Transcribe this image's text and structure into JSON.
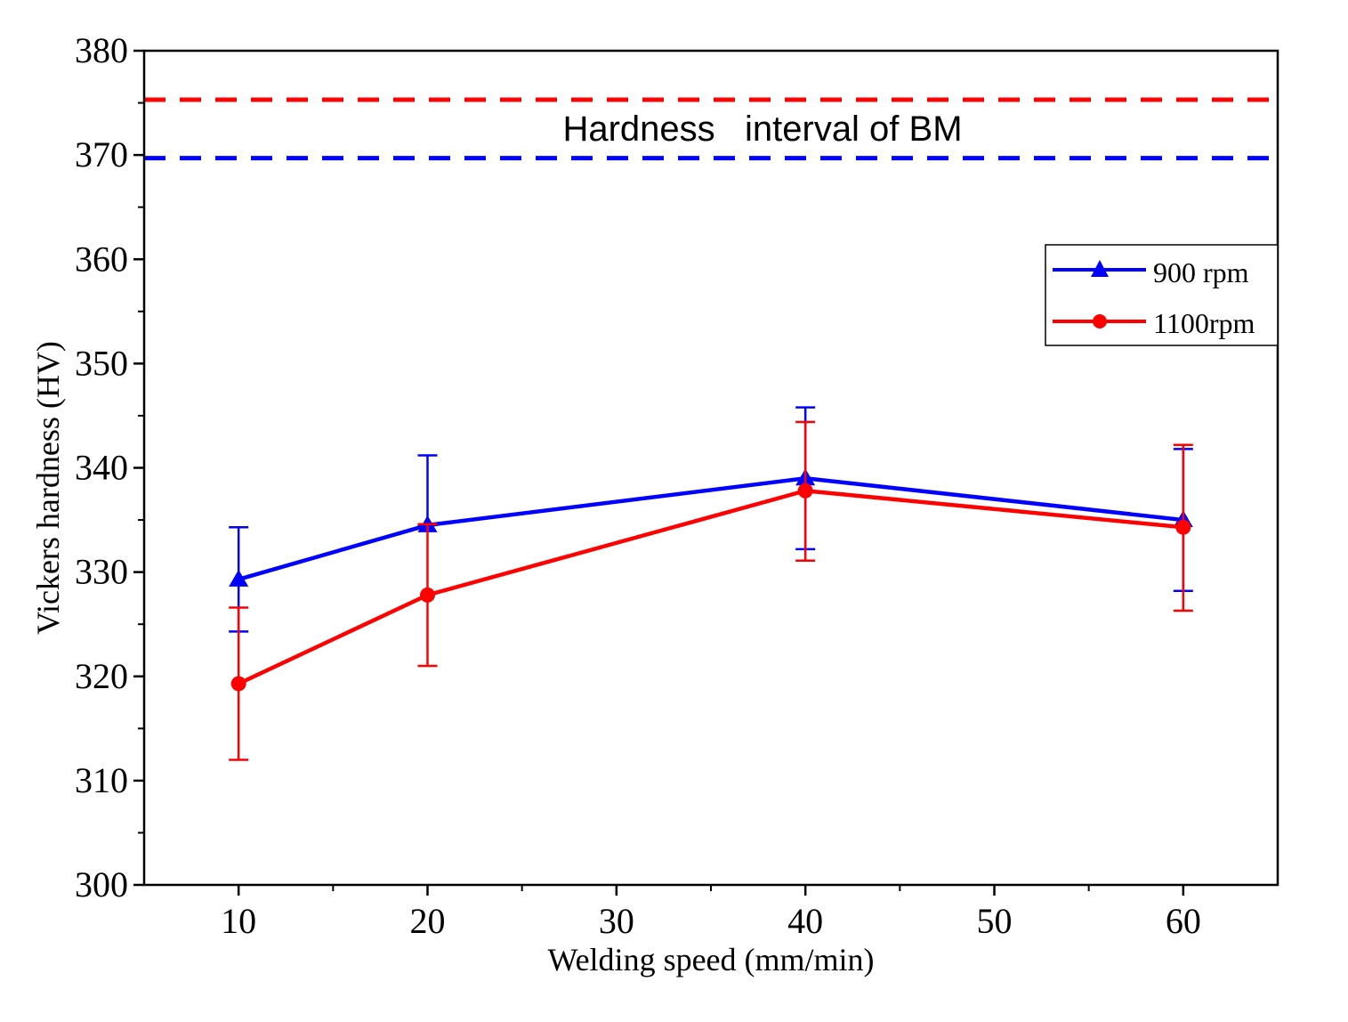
{
  "chart_data": {
    "type": "line",
    "xlabel": "Welding speed (mm/min)",
    "ylabel": "Vickers hardness (HV)",
    "xlim": [
      5,
      65
    ],
    "ylim": [
      300,
      380
    ],
    "x_ticks": [
      10,
      20,
      30,
      40,
      50,
      60
    ],
    "x_minor_ticks": [
      15,
      25,
      35,
      45,
      55
    ],
    "y_ticks": [
      300,
      310,
      320,
      330,
      340,
      350,
      360,
      370,
      380
    ],
    "y_minor_ticks": [
      305,
      315,
      325,
      335,
      345,
      355,
      365,
      375
    ],
    "series": [
      {
        "name": "900 rpm",
        "color": "#0000ff",
        "marker": "triangle",
        "x": [
          10,
          20,
          40,
          60
        ],
        "y": [
          329.3,
          334.5,
          339.0,
          335.0
        ],
        "err_low": [
          324.3,
          334.5,
          332.2,
          328.2
        ],
        "err_high": [
          334.3,
          341.2,
          345.8,
          341.8
        ]
      },
      {
        "name": "1100rpm",
        "color": "#ff0000",
        "marker": "circle",
        "x": [
          10,
          20,
          40,
          60
        ],
        "y": [
          319.3,
          327.8,
          337.8,
          334.3
        ],
        "err_low": [
          312.0,
          321.0,
          331.1,
          326.3
        ],
        "err_high": [
          326.6,
          334.6,
          344.4,
          342.2
        ]
      }
    ],
    "reference_lines": [
      {
        "name": "upper",
        "y": 375.3,
        "color": "#ff0000",
        "style": "dashed"
      },
      {
        "name": "lower",
        "y": 369.7,
        "color": "#0000ff",
        "style": "dashed"
      }
    ],
    "annotation": "Hardness   interval of BM",
    "legend": {
      "position": "right",
      "entries": [
        "900 rpm",
        "1100rpm"
      ]
    }
  }
}
